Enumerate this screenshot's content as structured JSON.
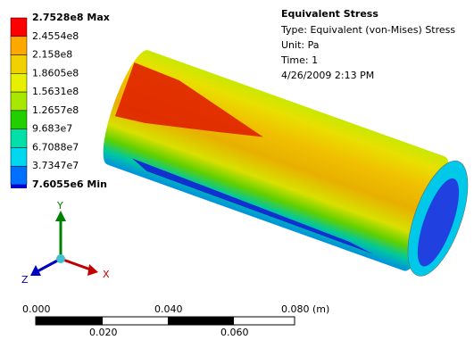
{
  "legend": {
    "labels": [
      "2.7528e8 Max",
      "2.4554e8",
      "2.158e8",
      "1.8605e8",
      "1.5631e8",
      "1.2657e8",
      "9.683e7",
      "6.7088e7",
      "3.7347e7",
      "7.6055e6 Min"
    ],
    "colors": [
      "#ff0000",
      "#ffa800",
      "#f0d000",
      "#e6f000",
      "#a8e800",
      "#22d000",
      "#00e0a8",
      "#00d8f0",
      "#0070ff",
      "#0000e0"
    ]
  },
  "info": {
    "title": "Equivalent Stress",
    "lines": [
      "Type: Equivalent (von-Mises) Stress",
      "Unit: Pa",
      "Time: 1",
      "4/26/2009 2:13 PM"
    ]
  },
  "triad": {
    "y": "Y",
    "x": "X",
    "z": "Z"
  },
  "scale": {
    "top": [
      "0.000",
      "0.040",
      "0.080 (m)"
    ],
    "bottom": [
      "0.020",
      "0.060"
    ]
  }
}
